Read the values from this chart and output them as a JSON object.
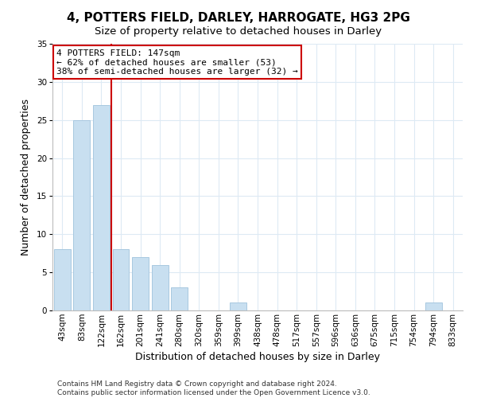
{
  "title": "4, POTTERS FIELD, DARLEY, HARROGATE, HG3 2PG",
  "subtitle": "Size of property relative to detached houses in Darley",
  "xlabel": "Distribution of detached houses by size in Darley",
  "ylabel": "Number of detached properties",
  "bar_labels": [
    "43sqm",
    "83sqm",
    "122sqm",
    "162sqm",
    "201sqm",
    "241sqm",
    "280sqm",
    "320sqm",
    "359sqm",
    "399sqm",
    "438sqm",
    "478sqm",
    "517sqm",
    "557sqm",
    "596sqm",
    "636sqm",
    "675sqm",
    "715sqm",
    "754sqm",
    "794sqm",
    "833sqm"
  ],
  "bar_values": [
    8,
    25,
    27,
    8,
    7,
    6,
    3,
    0,
    0,
    1,
    0,
    0,
    0,
    0,
    0,
    0,
    0,
    0,
    0,
    1,
    0
  ],
  "bar_color": "#c8dff0",
  "bar_edge_color": "#a8c8e0",
  "marker_line_color": "#cc0000",
  "annotation_line1": "4 POTTERS FIELD: 147sqm",
  "annotation_line2": "← 62% of detached houses are smaller (53)",
  "annotation_line3": "38% of semi-detached houses are larger (32) →",
  "annotation_box_edgecolor": "#cc0000",
  "annotation_box_facecolor": "#ffffff",
  "ylim": [
    0,
    35
  ],
  "yticks": [
    0,
    5,
    10,
    15,
    20,
    25,
    30,
    35
  ],
  "footer_line1": "Contains HM Land Registry data © Crown copyright and database right 2024.",
  "footer_line2": "Contains public sector information licensed under the Open Government Licence v3.0.",
  "background_color": "#ffffff",
  "grid_color": "#ddeaf4",
  "title_fontsize": 11,
  "subtitle_fontsize": 9.5,
  "axis_label_fontsize": 9,
  "tick_fontsize": 7.5,
  "annotation_fontsize": 8,
  "footer_fontsize": 6.5
}
